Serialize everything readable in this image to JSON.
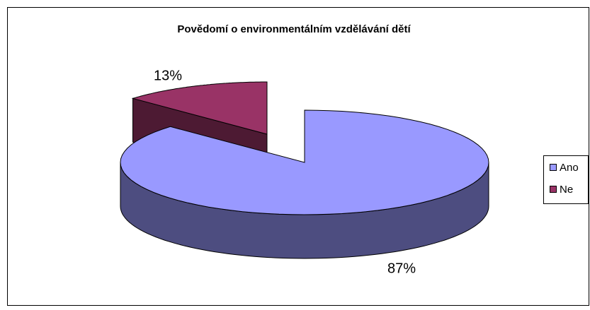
{
  "chart_data": {
    "type": "pie",
    "title": "Povědomí o environmentálním vzdělávání dětí",
    "categories": [
      "Ano",
      "Ne"
    ],
    "values": [
      87,
      13
    ],
    "value_labels": [
      "87%",
      "13%"
    ],
    "colors": [
      "#9999ff",
      "#993366"
    ],
    "legend": "right"
  }
}
